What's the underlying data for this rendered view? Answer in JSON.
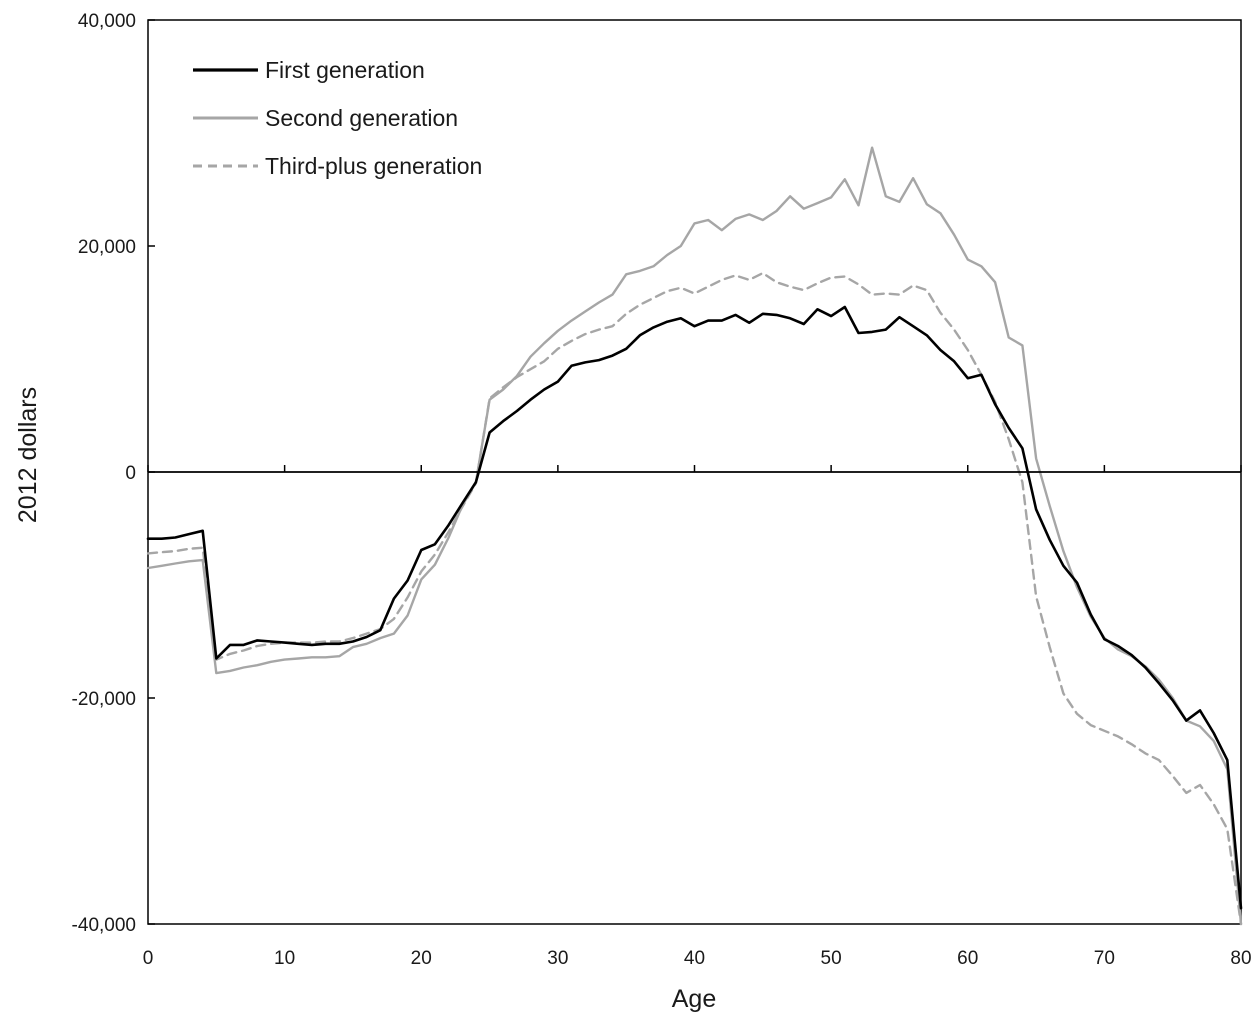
{
  "chart_data": {
    "type": "line",
    "title": "",
    "xlabel": "Age",
    "ylabel": "2012 dollars",
    "xlim": [
      0,
      80
    ],
    "ylim": [
      -40000,
      40000
    ],
    "xticks": [
      0,
      10,
      20,
      30,
      40,
      50,
      60,
      70,
      80
    ],
    "xtick_labels": [
      "0",
      "10",
      "20",
      "30",
      "40",
      "50",
      "60",
      "70",
      "80"
    ],
    "yticks": [
      40000,
      20000,
      0,
      -20000,
      -40000
    ],
    "ytick_labels": [
      "40,000",
      "20,000",
      "0",
      "-20,000",
      "-40,000"
    ],
    "grid": false,
    "legend_position": "top-left",
    "x": [
      0,
      1,
      2,
      3,
      4,
      5,
      6,
      7,
      8,
      9,
      10,
      11,
      12,
      13,
      14,
      15,
      16,
      17,
      18,
      19,
      20,
      21,
      22,
      23,
      24,
      25,
      26,
      27,
      28,
      29,
      30,
      31,
      32,
      33,
      34,
      35,
      36,
      37,
      38,
      39,
      40,
      41,
      42,
      43,
      44,
      45,
      46,
      47,
      48,
      49,
      50,
      51,
      52,
      53,
      54,
      55,
      56,
      57,
      58,
      59,
      60,
      61,
      62,
      63,
      64,
      65,
      66,
      67,
      68,
      69,
      70,
      71,
      72,
      73,
      74,
      75,
      76,
      77,
      78,
      79,
      80
    ],
    "series": [
      {
        "name": "Second generation",
        "color": "#a6a6a6",
        "dash": "solid",
        "values": [
          -8500,
          -8300,
          -8100,
          -7900,
          -7800,
          -17800,
          -17600,
          -17300,
          -17100,
          -16800,
          -16600,
          -16500,
          -16400,
          -16400,
          -16300,
          -15500,
          -15200,
          -14700,
          -14300,
          -12700,
          -9500,
          -8200,
          -5800,
          -3000,
          -900,
          6400,
          7300,
          8500,
          10200,
          11400,
          12500,
          13400,
          14200,
          15000,
          15700,
          17500,
          17800,
          18200,
          19200,
          20000,
          22000,
          22300,
          21400,
          22400,
          22800,
          22300,
          23100,
          24400,
          23300,
          23800,
          24300,
          25900,
          23600,
          28700,
          24400,
          23900,
          26000,
          23700,
          22900,
          21000,
          18800,
          18200,
          16800,
          11900,
          11200,
          1200,
          -3000,
          -7000,
          -10200,
          -12800,
          -14700,
          -15700,
          -16300,
          -17200,
          -18400,
          -20000,
          -22000,
          -22500,
          -23800,
          -26300,
          -40000
        ]
      },
      {
        "name": "Third-plus generation",
        "color": "#a6a6a6",
        "dash": "dashed",
        "values": [
          -7200,
          -7100,
          -7000,
          -6800,
          -6700,
          -16600,
          -16100,
          -15800,
          -15400,
          -15200,
          -15100,
          -15100,
          -15100,
          -15000,
          -15000,
          -14700,
          -14300,
          -13900,
          -13000,
          -11100,
          -8800,
          -7300,
          -5300,
          -3100,
          -1000,
          6500,
          7500,
          8400,
          9100,
          9800,
          10900,
          11600,
          12200,
          12600,
          12900,
          14000,
          14800,
          15400,
          16000,
          16300,
          15800,
          16400,
          17000,
          17400,
          17000,
          17600,
          16800,
          16400,
          16100,
          16700,
          17200,
          17300,
          16600,
          15700,
          15800,
          15700,
          16500,
          16100,
          14100,
          12600,
          10800,
          8600,
          6200,
          2900,
          -900,
          -11000,
          -15500,
          -19600,
          -21400,
          -22400,
          -22900,
          -23400,
          -24100,
          -24900,
          -25500,
          -26900,
          -28400,
          -27700,
          -29400,
          -31600,
          -40000
        ]
      },
      {
        "name": "First generation",
        "color": "#000000",
        "dash": "solid",
        "values": [
          -5900,
          -5900,
          -5800,
          -5500,
          -5200,
          -16500,
          -15300,
          -15300,
          -14900,
          -15000,
          -15100,
          -15200,
          -15300,
          -15200,
          -15200,
          -15000,
          -14600,
          -14000,
          -11200,
          -9600,
          -6900,
          -6400,
          -4700,
          -2800,
          -900,
          3500,
          4500,
          5400,
          6400,
          7300,
          8000,
          9400,
          9700,
          9900,
          10300,
          10900,
          12100,
          12800,
          13300,
          13600,
          12900,
          13400,
          13400,
          13900,
          13200,
          14000,
          13900,
          13600,
          13100,
          14400,
          13800,
          14600,
          12300,
          12400,
          12600,
          13700,
          12900,
          12100,
          10800,
          9800,
          8300,
          8600,
          6000,
          3900,
          2100,
          -3300,
          -6000,
          -8300,
          -9800,
          -12600,
          -14800,
          -15400,
          -16200,
          -17300,
          -18700,
          -20200,
          -22000,
          -21100,
          -23100,
          -25500,
          -38600
        ]
      }
    ]
  }
}
